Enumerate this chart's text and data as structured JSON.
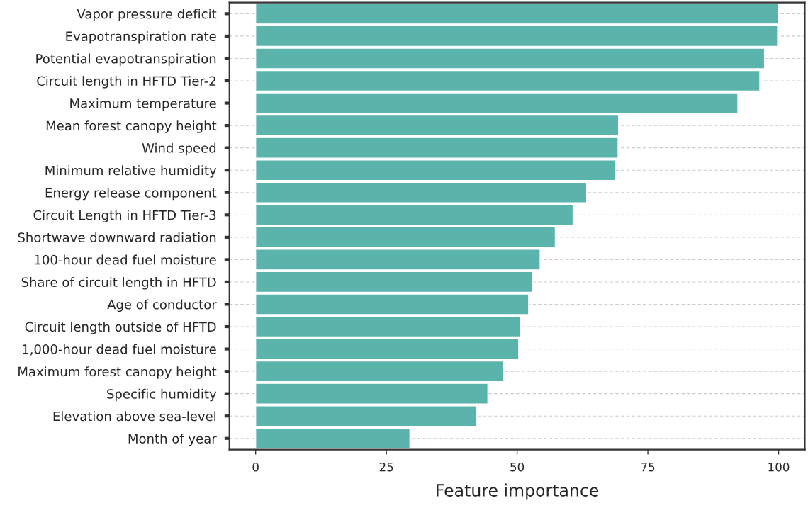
{
  "chart_data": {
    "type": "bar",
    "orientation": "horizontal",
    "xlabel": "Feature importance",
    "categories": [
      "Vapor pressure deficit",
      "Evapotranspiration rate",
      "Potential evapotranspiration",
      "Circuit length in HFTD Tier-2",
      "Maximum temperature",
      "Mean forest canopy height",
      "Wind speed",
      "Minimum relative humidity",
      "Energy release component",
      "Circuit Length in HFTD Tier-3",
      "Shortwave downward radiation",
      "100-hour dead fuel moisture",
      "Share of circuit length in HFTD",
      "Age of conductor",
      "Circuit length outside of HFTD",
      "1,000-hour dead fuel moisture",
      "Maximum forest canopy height",
      "Specific humidity",
      "Elevation above sea-level",
      "Month of year"
    ],
    "values": [
      100,
      99.8,
      97.3,
      96.4,
      92.2,
      69.4,
      69.3,
      68.8,
      63.3,
      60.7,
      57.3,
      54.4,
      53.0,
      52.2,
      50.6,
      50.3,
      47.4,
      44.4,
      42.3,
      29.5
    ],
    "color": "#5ab4ac",
    "xlim": [
      -5,
      105
    ],
    "xticks": [
      0,
      25,
      50,
      75,
      100
    ],
    "grid": "y"
  }
}
